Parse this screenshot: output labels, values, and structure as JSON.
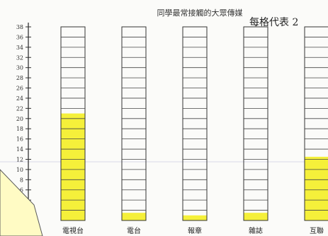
{
  "chart_data": {
    "type": "bar",
    "title": "同學最常接觸的大眾傳媒",
    "subtitle": "每格代表 2",
    "categories": [
      "電視台",
      "電台",
      "報章",
      "雜誌",
      "互聯"
    ],
    "values": [
      21,
      1.5,
      1,
      1.5,
      12.5
    ],
    "y_ticks": [
      "38",
      "36",
      "34",
      "32",
      "30",
      "28",
      "26",
      "24",
      "22",
      "20",
      "18",
      "16",
      "14",
      "12",
      "10",
      "8",
      "6",
      "4",
      "2"
    ],
    "ylim": [
      0,
      38
    ],
    "bar_color": "#f5f03a",
    "grid": false,
    "xlabel": "",
    "ylabel": ""
  }
}
